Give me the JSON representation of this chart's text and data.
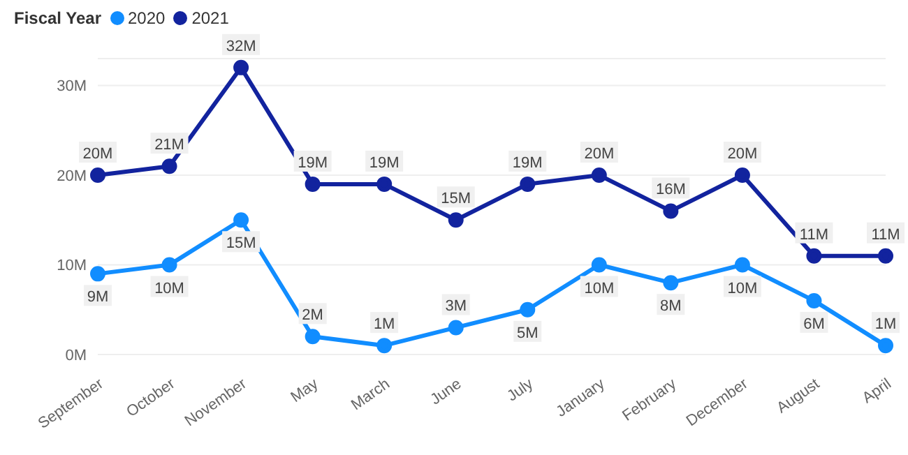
{
  "chart_data": {
    "type": "line",
    "legend_title": "Fiscal Year",
    "legend": "top left",
    "grid": "y",
    "marker": "circle",
    "line_style": "solid",
    "categories": [
      "September",
      "October",
      "November",
      "May",
      "March",
      "June",
      "July",
      "January",
      "February",
      "December",
      "August",
      "April"
    ],
    "ylim": [
      0,
      33
    ],
    "yticks": [
      {
        "value": 0,
        "label": "0M"
      },
      {
        "value": 10,
        "label": "10M"
      },
      {
        "value": 20,
        "label": "20M"
      },
      {
        "value": 30,
        "label": "30M"
      }
    ],
    "series": [
      {
        "name": "2020",
        "color": "#118dff",
        "values": [
          9,
          10,
          15,
          2,
          1,
          3,
          5,
          10,
          8,
          10,
          6,
          1
        ],
        "value_labels": [
          "9M",
          "10M",
          "15M",
          "2M",
          "1M",
          "3M",
          "5M",
          "10M",
          "8M",
          "10M",
          "6M",
          "1M"
        ]
      },
      {
        "name": "2021",
        "color": "#12239e",
        "values": [
          20,
          21,
          32,
          19,
          19,
          15,
          19,
          20,
          16,
          20,
          11,
          11
        ],
        "value_labels": [
          "20M",
          "21M",
          "32M",
          "19M",
          "19M",
          "15M",
          "19M",
          "20M",
          "16M",
          "20M",
          "11M",
          "11M"
        ]
      }
    ]
  }
}
